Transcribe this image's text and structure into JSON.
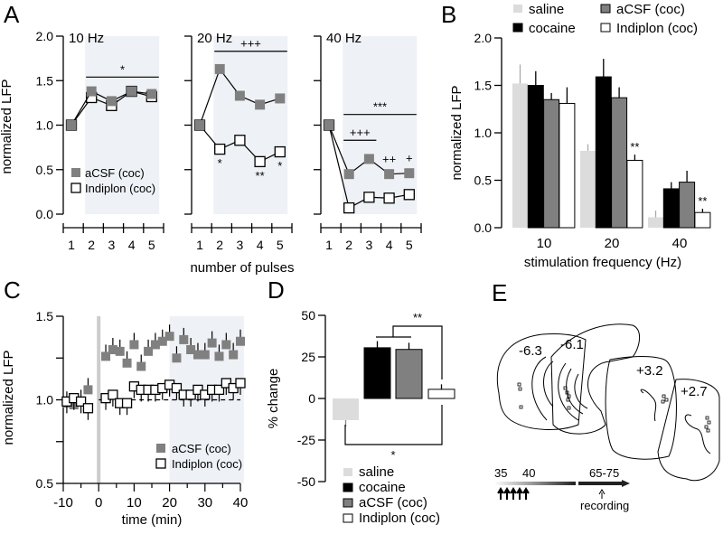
{
  "colors": {
    "saline": "#dcdcdc",
    "cocaine": "#000000",
    "acsf": "#808080",
    "indiplon": "#ffffff",
    "shade": "#eef1f5"
  },
  "chart_data": [
    {
      "panel": "A",
      "type": "line",
      "ylabel": "normalized LFP",
      "xlabel": "number of pulses",
      "ylim": [
        0,
        2
      ],
      "yticks": [
        "0.0",
        "0.5",
        "1.0",
        "1.5",
        "2.0"
      ],
      "x": [
        "1",
        "2",
        "3",
        "4",
        "5"
      ],
      "legend": [
        "aCSF (coc)",
        "Indiplon (coc)"
      ],
      "subplots": [
        {
          "title": "10 Hz",
          "series": [
            {
              "name": "aCSF (coc)",
              "values": [
                1.0,
                1.38,
                1.27,
                1.38,
                1.35
              ]
            },
            {
              "name": "Indiplon (coc)",
              "values": [
                1.0,
                1.31,
                1.22,
                1.38,
                1.32
              ]
            }
          ],
          "annotations": [
            {
              "text": "*",
              "level": 1.54,
              "from": 2,
              "to": 5
            }
          ],
          "point_marks": []
        },
        {
          "title": "20 Hz",
          "series": [
            {
              "name": "aCSF (coc)",
              "values": [
                1.0,
                1.63,
                1.33,
                1.23,
                1.3
              ]
            },
            {
              "name": "Indiplon (coc)",
              "values": [
                1.0,
                0.73,
                0.83,
                0.59,
                0.7
              ]
            }
          ],
          "annotations": [
            {
              "text": "+++",
              "level": 1.83,
              "from": 2,
              "to": 5
            }
          ],
          "point_marks": [
            {
              "text": "*",
              "x": 2
            },
            {
              "text": "**",
              "x": 4
            },
            {
              "text": "*",
              "x": 5
            }
          ]
        },
        {
          "title": "40 Hz",
          "series": [
            {
              "name": "aCSF (coc)",
              "values": [
                1.0,
                0.45,
                0.62,
                0.45,
                0.46
              ]
            },
            {
              "name": "Indiplon (coc)",
              "values": [
                1.0,
                0.07,
                0.19,
                0.18,
                0.22
              ]
            }
          ],
          "annotations": [
            {
              "text": "***",
              "level": 1.12,
              "from": 2,
              "to": 5
            },
            {
              "text": "+++",
              "level": 0.83,
              "from": 2,
              "to": 3
            }
          ],
          "point_marks": [
            {
              "text": "++",
              "x": 4
            },
            {
              "text": "+",
              "x": 5
            }
          ]
        }
      ]
    },
    {
      "panel": "B",
      "type": "bar",
      "ylabel": "normalized LFP",
      "xlabel": "stimulation frequency (Hz)",
      "ylim": [
        0,
        2
      ],
      "yticks": [
        "0.0",
        "0.5",
        "1.0",
        "1.5",
        "2.0"
      ],
      "categories": [
        "10",
        "20",
        "40"
      ],
      "series": [
        {
          "name": "saline",
          "values": [
            1.52,
            0.81,
            0.11
          ],
          "errors": [
            0.2,
            0.07,
            0.07
          ]
        },
        {
          "name": "cocaine",
          "values": [
            1.5,
            1.59,
            0.41
          ],
          "errors": [
            0.15,
            0.19,
            0.07
          ]
        },
        {
          "name": "aCSF (coc)",
          "values": [
            1.35,
            1.37,
            0.48
          ],
          "errors": [
            0.07,
            0.11,
            0.12
          ]
        },
        {
          "name": "Indiplon (coc)",
          "values": [
            1.31,
            0.71,
            0.16
          ],
          "errors": [
            0.17,
            0.06,
            0.04
          ]
        }
      ],
      "significance": [
        {
          "text": "**",
          "category": "20",
          "series": "Indiplon (coc)"
        },
        {
          "text": "**",
          "category": "40",
          "series": "Indiplon (coc)"
        }
      ],
      "legend": [
        "saline",
        "cocaine",
        "aCSF (coc)",
        "Indiplon (coc)"
      ]
    },
    {
      "panel": "C",
      "type": "scatter",
      "ylabel": "normalized LFP",
      "xlabel": "time (min)",
      "xlim": [
        -10,
        40
      ],
      "ylim": [
        0.5,
        1.5
      ],
      "xticks": [
        "-10",
        "0",
        "10",
        "20",
        "30",
        "40"
      ],
      "yticks": [
        "0.5",
        "1.0",
        "1.5"
      ],
      "shaded_from": 20,
      "baseline": 1.0,
      "series": [
        {
          "name": "aCSF (coc)",
          "x": [
            -9,
            -7,
            -5,
            -3,
            2,
            4,
            6,
            8,
            10,
            12,
            14,
            16,
            18,
            20,
            22,
            24,
            26,
            28,
            30,
            32,
            34,
            36,
            38,
            40
          ],
          "values": [
            0.98,
            0.97,
            0.99,
            1.06,
            1.26,
            1.3,
            1.29,
            1.22,
            1.33,
            1.2,
            1.29,
            1.33,
            1.35,
            1.38,
            1.25,
            1.36,
            1.3,
            1.27,
            1.27,
            1.34,
            1.26,
            1.33,
            1.27,
            1.35
          ]
        },
        {
          "name": "Indiplon (coc)",
          "x": [
            -9,
            -7,
            -5,
            -3,
            2,
            4,
            6,
            8,
            10,
            12,
            14,
            16,
            18,
            20,
            22,
            24,
            26,
            28,
            30,
            32,
            34,
            36,
            38,
            40
          ],
          "values": [
            0.99,
            1.01,
            0.99,
            0.95,
            1.01,
            1.03,
            0.98,
            0.98,
            1.08,
            1.06,
            1.06,
            1.06,
            1.07,
            1.09,
            1.07,
            1.03,
            1.03,
            1.06,
            1.03,
            1.06,
            1.06,
            1.1,
            1.07,
            1.1
          ]
        }
      ],
      "legend": [
        "aCSF (coc)",
        "Indiplon (coc)"
      ]
    },
    {
      "panel": "D",
      "type": "bar",
      "ylabel": "% change",
      "ylim": [
        -50,
        50
      ],
      "yticks": [
        "-50",
        "-25",
        "0",
        "25",
        "50"
      ],
      "categories": [
        "saline",
        "cocaine",
        "aCSF (coc)",
        "Indiplon (coc)"
      ],
      "values": [
        -13,
        30.5,
        29.5,
        5.5
      ],
      "errors": [
        4,
        4,
        4,
        3
      ],
      "significance": [
        {
          "text": "**",
          "between": "cocaine+aCSF (coc) vs Indiplon (coc)"
        },
        {
          "text": "*",
          "between": "saline vs Indiplon (coc)"
        }
      ],
      "legend": [
        "saline",
        "cocaine",
        "aCSF (coc)",
        "Indiplon (coc)"
      ]
    }
  ],
  "panels": {
    "A": "A",
    "B": "B",
    "C": "C",
    "D": "D",
    "E": "E"
  },
  "panelE": {
    "sections": [
      "-6.3",
      "-6.1",
      "+3.2",
      "+2.7"
    ],
    "timeline": {
      "t1": "35",
      "t2": "40",
      "t3": "65-75",
      "recording": "recording"
    }
  }
}
